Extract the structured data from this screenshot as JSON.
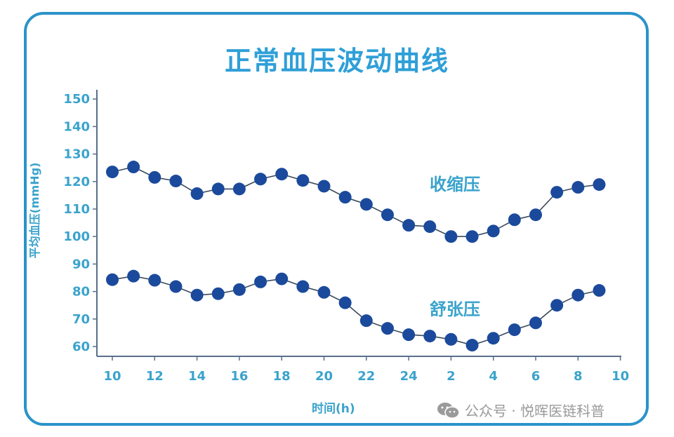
{
  "title": "正常血压波动曲线",
  "axes": {
    "ylabel": "平均血压(mmHg)",
    "xlabel": "时间(h)",
    "yticks": [
      "150",
      "140",
      "130",
      "120",
      "110",
      "100",
      "90",
      "80",
      "70",
      "60"
    ],
    "xticks": [
      "10",
      "12",
      "14",
      "16",
      "18",
      "20",
      "22",
      "24",
      "2",
      "4",
      "6",
      "8",
      "10"
    ]
  },
  "labels": {
    "systolic": "收缩压",
    "diastolic": "舒张压"
  },
  "watermark": {
    "text": "公众号 · 悦晖医链科普",
    "icon": "wechat-icon"
  },
  "colors": {
    "frame": "#2a93c9",
    "title": "#2f9fd8",
    "axis_text": "#3aa3cc",
    "dot": "#1b4a9c",
    "line": "#3a4a5c",
    "axis": "#5a6f8a"
  },
  "chart_data": {
    "type": "line",
    "title": "正常血压波动曲线",
    "xlabel": "时间(h)",
    "ylabel": "平均血压(mmHg)",
    "ylim": [
      60,
      150
    ],
    "grid": false,
    "legend": "inline labels",
    "x": [
      "10",
      "11",
      "12",
      "13",
      "14",
      "15",
      "16",
      "17",
      "18",
      "19",
      "20",
      "21",
      "22",
      "23",
      "24",
      "1",
      "2",
      "3",
      "4",
      "5",
      "6",
      "7",
      "8",
      "9"
    ],
    "x_tick_labels": [
      "10",
      "12",
      "14",
      "16",
      "18",
      "20",
      "22",
      "24",
      "2",
      "4",
      "6",
      "8",
      "10"
    ],
    "series": [
      {
        "name": "收缩压",
        "values": [
          123.5,
          125.3,
          121.5,
          120.2,
          115.6,
          117.3,
          117.3,
          120.9,
          122.7,
          120.4,
          118.3,
          114.3,
          111.7,
          107.9,
          104.1,
          103.6,
          100.0,
          100.0,
          102.0,
          106.1,
          107.9,
          116.1,
          117.9,
          118.9
        ]
      },
      {
        "name": "舒张压",
        "values": [
          84.3,
          85.6,
          84.1,
          81.8,
          78.7,
          79.2,
          80.7,
          83.5,
          84.6,
          81.8,
          79.7,
          75.9,
          69.4,
          66.6,
          64.3,
          63.8,
          62.6,
          60.5,
          63.0,
          66.1,
          68.6,
          75.0,
          78.7,
          80.4
        ]
      }
    ]
  }
}
